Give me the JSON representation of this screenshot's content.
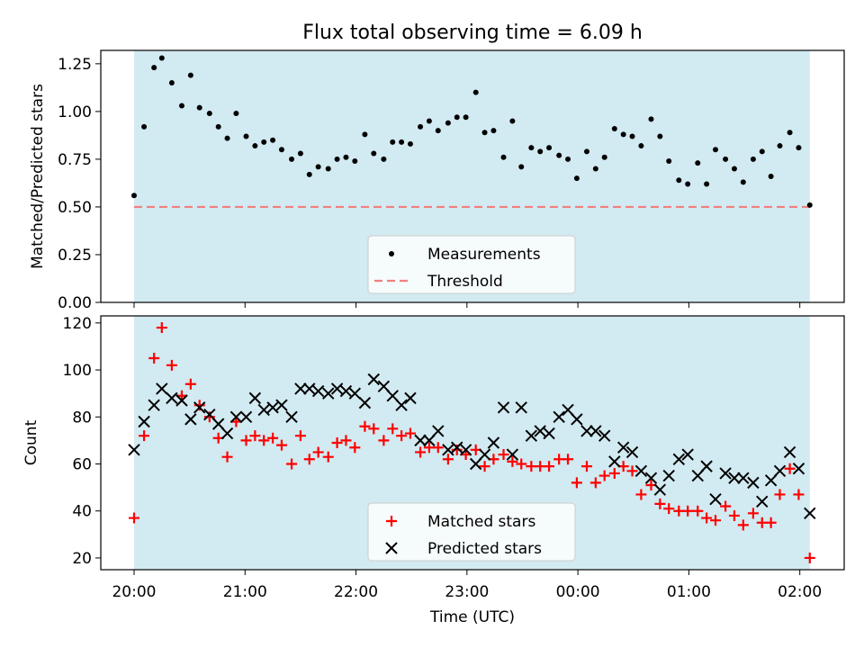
{
  "title": "Flux total observing time = 6.09 h",
  "colors": {
    "band": "#add8e6",
    "measurement": "#000000",
    "threshold": "#f08080",
    "matched": "#ff0000",
    "predicted": "#000000"
  },
  "x_axis": {
    "label": "Time (UTC)",
    "range_hours": [
      19.7,
      26.4
    ],
    "ticks": [
      {
        "h": 20,
        "label": "20:00"
      },
      {
        "h": 21,
        "label": "21:00"
      },
      {
        "h": 22,
        "label": "22:00"
      },
      {
        "h": 23,
        "label": "23:00"
      },
      {
        "h": 24,
        "label": "00:00"
      },
      {
        "h": 25,
        "label": "01:00"
      },
      {
        "h": 26,
        "label": "02:00"
      }
    ]
  },
  "chart_data": [
    {
      "type": "scatter",
      "ylabel": "Matched/Predicted stars",
      "ylim": [
        0.0,
        1.32
      ],
      "yticks": [
        "0.00",
        "0.25",
        "0.50",
        "0.75",
        "1.00",
        "1.25"
      ],
      "observing_band_hours": [
        20.0,
        26.09
      ],
      "threshold": 0.5,
      "legend": {
        "position": "lower center",
        "entries": [
          "Measurements",
          "Threshold"
        ]
      },
      "series": [
        {
          "name": "Measurements",
          "points": [
            [
              20.0,
              0.56
            ],
            [
              20.09,
              0.92
            ],
            [
              20.18,
              1.23
            ],
            [
              20.25,
              1.28
            ],
            [
              20.34,
              1.15
            ],
            [
              20.43,
              1.03
            ],
            [
              20.51,
              1.19
            ],
            [
              20.59,
              1.02
            ],
            [
              20.68,
              0.99
            ],
            [
              20.76,
              0.92
            ],
            [
              20.84,
              0.86
            ],
            [
              20.92,
              0.99
            ],
            [
              21.01,
              0.87
            ],
            [
              21.09,
              0.82
            ],
            [
              21.17,
              0.84
            ],
            [
              21.25,
              0.85
            ],
            [
              21.33,
              0.8
            ],
            [
              21.42,
              0.75
            ],
            [
              21.5,
              0.78
            ],
            [
              21.58,
              0.67
            ],
            [
              21.66,
              0.71
            ],
            [
              21.75,
              0.7
            ],
            [
              21.83,
              0.75
            ],
            [
              21.91,
              0.76
            ],
            [
              21.99,
              0.74
            ],
            [
              22.08,
              0.88
            ],
            [
              22.16,
              0.78
            ],
            [
              22.25,
              0.75
            ],
            [
              22.33,
              0.84
            ],
            [
              22.41,
              0.84
            ],
            [
              22.49,
              0.83
            ],
            [
              22.58,
              0.92
            ],
            [
              22.66,
              0.95
            ],
            [
              22.74,
              0.9
            ],
            [
              22.83,
              0.94
            ],
            [
              22.91,
              0.97
            ],
            [
              22.99,
              0.97
            ],
            [
              23.08,
              1.1
            ],
            [
              23.16,
              0.89
            ],
            [
              23.24,
              0.9
            ],
            [
              23.33,
              0.76
            ],
            [
              23.41,
              0.95
            ],
            [
              23.49,
              0.71
            ],
            [
              23.58,
              0.81
            ],
            [
              23.66,
              0.79
            ],
            [
              23.74,
              0.81
            ],
            [
              23.83,
              0.77
            ],
            [
              23.91,
              0.75
            ],
            [
              23.99,
              0.65
            ],
            [
              24.08,
              0.79
            ],
            [
              24.16,
              0.7
            ],
            [
              24.24,
              0.76
            ],
            [
              24.33,
              0.91
            ],
            [
              24.41,
              0.88
            ],
            [
              24.49,
              0.87
            ],
            [
              24.57,
              0.82
            ],
            [
              24.66,
              0.96
            ],
            [
              24.74,
              0.87
            ],
            [
              24.82,
              0.74
            ],
            [
              24.91,
              0.64
            ],
            [
              24.99,
              0.62
            ],
            [
              25.08,
              0.73
            ],
            [
              25.16,
              0.62
            ],
            [
              25.24,
              0.8
            ],
            [
              25.33,
              0.75
            ],
            [
              25.41,
              0.7
            ],
            [
              25.49,
              0.63
            ],
            [
              25.58,
              0.75
            ],
            [
              25.66,
              0.79
            ],
            [
              25.74,
              0.66
            ],
            [
              25.82,
              0.82
            ],
            [
              25.91,
              0.89
            ],
            [
              25.99,
              0.81
            ],
            [
              26.09,
              0.51
            ]
          ]
        }
      ]
    },
    {
      "type": "scatter",
      "ylabel": "Count",
      "ylim": [
        15,
        123
      ],
      "yticks": [
        "20",
        "40",
        "60",
        "80",
        "100",
        "120"
      ],
      "observing_band_hours": [
        20.0,
        26.09
      ],
      "legend": {
        "position": "lower center",
        "entries": [
          "Matched stars",
          "Predicted stars"
        ]
      },
      "series": [
        {
          "name": "Matched stars",
          "points": [
            [
              20.0,
              37
            ],
            [
              20.09,
              72
            ],
            [
              20.18,
              105
            ],
            [
              20.25,
              118
            ],
            [
              20.34,
              102
            ],
            [
              20.43,
              89
            ],
            [
              20.51,
              94
            ],
            [
              20.59,
              85
            ],
            [
              20.68,
              80
            ],
            [
              20.76,
              71
            ],
            [
              20.84,
              63
            ],
            [
              20.92,
              78
            ],
            [
              21.01,
              70
            ],
            [
              21.09,
              72
            ],
            [
              21.17,
              70
            ],
            [
              21.25,
              71
            ],
            [
              21.33,
              68
            ],
            [
              21.42,
              60
            ],
            [
              21.5,
              72
            ],
            [
              21.58,
              62
            ],
            [
              21.66,
              65
            ],
            [
              21.75,
              63
            ],
            [
              21.83,
              69
            ],
            [
              21.91,
              70
            ],
            [
              21.99,
              67
            ],
            [
              22.08,
              76
            ],
            [
              22.16,
              75
            ],
            [
              22.25,
              70
            ],
            [
              22.33,
              75
            ],
            [
              22.41,
              72
            ],
            [
              22.49,
              73
            ],
            [
              22.58,
              65
            ],
            [
              22.66,
              67
            ],
            [
              22.74,
              67
            ],
            [
              22.83,
              62
            ],
            [
              22.91,
              66
            ],
            [
              22.99,
              64
            ],
            [
              23.08,
              66
            ],
            [
              23.16,
              59
            ],
            [
              23.24,
              62
            ],
            [
              23.33,
              64
            ],
            [
              23.41,
              61
            ],
            [
              23.49,
              60
            ],
            [
              23.58,
              59
            ],
            [
              23.66,
              59
            ],
            [
              23.74,
              59
            ],
            [
              23.83,
              62
            ],
            [
              23.91,
              62
            ],
            [
              23.99,
              52
            ],
            [
              24.08,
              59
            ],
            [
              24.16,
              52
            ],
            [
              24.24,
              55
            ],
            [
              24.33,
              56
            ],
            [
              24.41,
              59
            ],
            [
              24.49,
              57
            ],
            [
              24.57,
              47
            ],
            [
              24.66,
              51
            ],
            [
              24.74,
              43
            ],
            [
              24.82,
              41
            ],
            [
              24.91,
              40
            ],
            [
              24.99,
              40
            ],
            [
              25.08,
              40
            ],
            [
              25.16,
              37
            ],
            [
              25.24,
              36
            ],
            [
              25.33,
              42
            ],
            [
              25.41,
              38
            ],
            [
              25.49,
              34
            ],
            [
              25.58,
              39
            ],
            [
              25.66,
              35
            ],
            [
              25.74,
              35
            ],
            [
              25.82,
              47
            ],
            [
              25.91,
              58
            ],
            [
              25.99,
              47
            ],
            [
              26.09,
              20
            ]
          ]
        },
        {
          "name": "Predicted stars",
          "points": [
            [
              20.0,
              66
            ],
            [
              20.09,
              78
            ],
            [
              20.18,
              85
            ],
            [
              20.25,
              92
            ],
            [
              20.34,
              88
            ],
            [
              20.43,
              87
            ],
            [
              20.51,
              79
            ],
            [
              20.59,
              84
            ],
            [
              20.68,
              81
            ],
            [
              20.76,
              77
            ],
            [
              20.84,
              73
            ],
            [
              20.92,
              80
            ],
            [
              21.01,
              80
            ],
            [
              21.09,
              88
            ],
            [
              21.17,
              83
            ],
            [
              21.25,
              84
            ],
            [
              21.33,
              85
            ],
            [
              21.42,
              80
            ],
            [
              21.5,
              92
            ],
            [
              21.58,
              92
            ],
            [
              21.66,
              91
            ],
            [
              21.75,
              90
            ],
            [
              21.83,
              92
            ],
            [
              21.91,
              91
            ],
            [
              21.99,
              90
            ],
            [
              22.08,
              86
            ],
            [
              22.16,
              96
            ],
            [
              22.25,
              93
            ],
            [
              22.33,
              89
            ],
            [
              22.41,
              85
            ],
            [
              22.49,
              88
            ],
            [
              22.58,
              70
            ],
            [
              22.66,
              70
            ],
            [
              22.74,
              74
            ],
            [
              22.83,
              66
            ],
            [
              22.91,
              67
            ],
            [
              22.99,
              66
            ],
            [
              23.08,
              60
            ],
            [
              23.16,
              64
            ],
            [
              23.24,
              69
            ],
            [
              23.33,
              84
            ],
            [
              23.41,
              64
            ],
            [
              23.49,
              84
            ],
            [
              23.58,
              72
            ],
            [
              23.66,
              74
            ],
            [
              23.74,
              73
            ],
            [
              23.83,
              80
            ],
            [
              23.91,
              83
            ],
            [
              23.99,
              79
            ],
            [
              24.08,
              74
            ],
            [
              24.16,
              74
            ],
            [
              24.24,
              72
            ],
            [
              24.33,
              61
            ],
            [
              24.41,
              67
            ],
            [
              24.49,
              65
            ],
            [
              24.57,
              57
            ],
            [
              24.66,
              54
            ],
            [
              24.74,
              49
            ],
            [
              24.82,
              55
            ],
            [
              24.91,
              62
            ],
            [
              24.99,
              64
            ],
            [
              25.08,
              55
            ],
            [
              25.16,
              59
            ],
            [
              25.24,
              45
            ],
            [
              25.33,
              56
            ],
            [
              25.41,
              54
            ],
            [
              25.49,
              54
            ],
            [
              25.58,
              52
            ],
            [
              25.66,
              44
            ],
            [
              25.74,
              53
            ],
            [
              25.82,
              57
            ],
            [
              25.91,
              65
            ],
            [
              25.99,
              58
            ],
            [
              26.09,
              39
            ]
          ]
        }
      ]
    }
  ]
}
